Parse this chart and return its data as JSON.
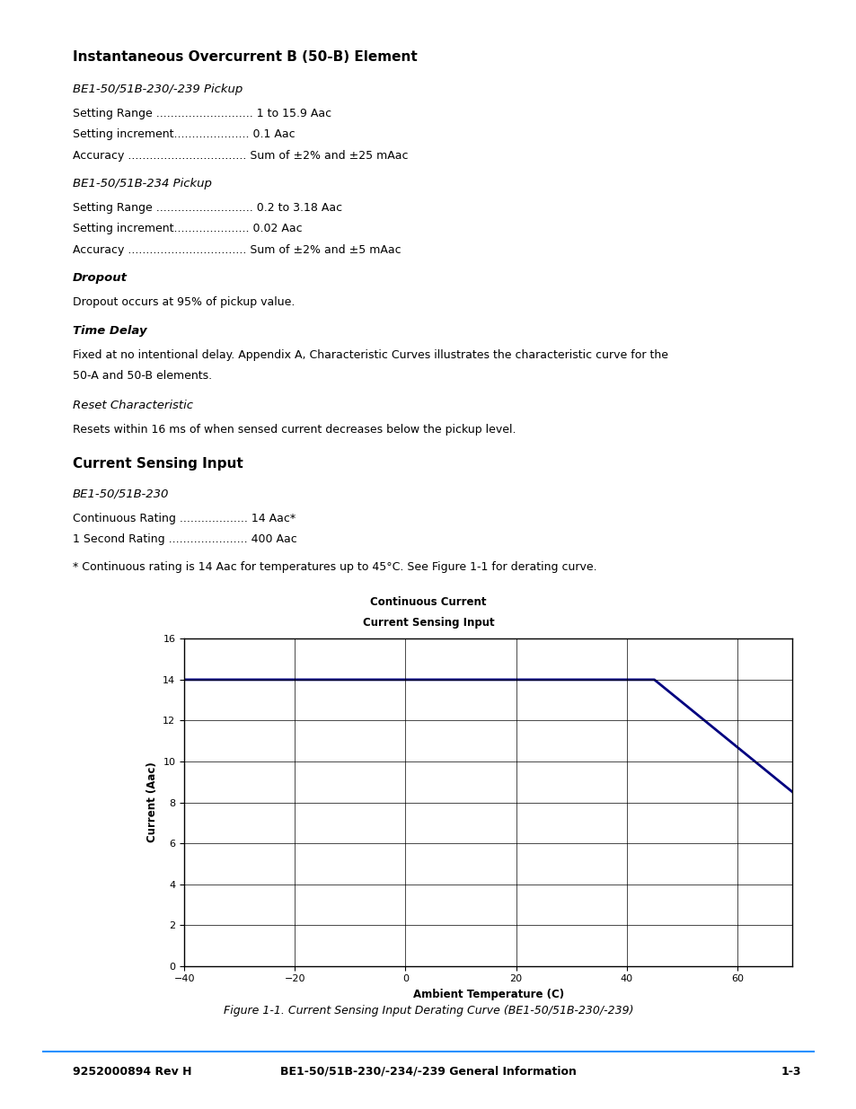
{
  "page_title": "Instantaneous Overcurrent B (50-B) Element",
  "section1_title": "BE1-50/51B-230/-239 Pickup",
  "section1_items": [
    "Setting Range ........................... 1 to 15.9 Aac",
    "Setting increment..................... 0.1 Aac",
    "Accuracy ................................. Sum of ±2% and ±25 mAac"
  ],
  "section2_title": "BE1-50/51B-234 Pickup",
  "section2_items": [
    "Setting Range ........................... 0.2 to 3.18 Aac",
    "Setting increment..................... 0.02 Aac",
    "Accuracy ................................. Sum of ±2% and ±5 mAac"
  ],
  "section3_title": "Dropout",
  "section3_text": "Dropout occurs at 95% of pickup value.",
  "section4_title": "Time Delay",
  "section4_text_line1": "Fixed at no intentional delay. Appendix A, Characteristic Curves illustrates the characteristic curve for the",
  "section4_text_line2": "50-A and 50-B elements.",
  "section5_title": "Reset Characteristic",
  "section5_text": "Resets within 16 ms of when sensed current decreases below the pickup level.",
  "section6_title": "Current Sensing Input",
  "section7_title": "BE1-50/51B-230",
  "section7_items": [
    "Continuous Rating ................... 14 Aac*",
    "1 Second Rating ...................... 400 Aac"
  ],
  "footnote": "* Continuous rating is 14 Aac for temperatures up to 45°C. See Figure 1-1 for derating curve.",
  "chart_title_line1": "Continuous Current",
  "chart_title_line2": "Current Sensing Input",
  "chart_xlabel": "Ambient Temperature (C)",
  "chart_ylabel": "Current (Aac)",
  "chart_xlim": [
    -40,
    70
  ],
  "chart_ylim": [
    0,
    16
  ],
  "chart_xticks": [
    -40,
    -20,
    0,
    20,
    40,
    60
  ],
  "chart_yticks": [
    0,
    2,
    4,
    6,
    8,
    10,
    12,
    14,
    16
  ],
  "curve_color": "#000080",
  "curve_linewidth": 2.0,
  "figure_caption": "Figure 1-1. Current Sensing Input Derating Curve (BE1-50/51B-230/-239)",
  "footer_left": "9252000894 Rev H",
  "footer_center": "BE1-50/51B-230/-234/-239 General Information",
  "footer_right": "1-3",
  "footer_line_color": "#1e90ff",
  "bg_color": "#ffffff",
  "text_color": "#000000"
}
